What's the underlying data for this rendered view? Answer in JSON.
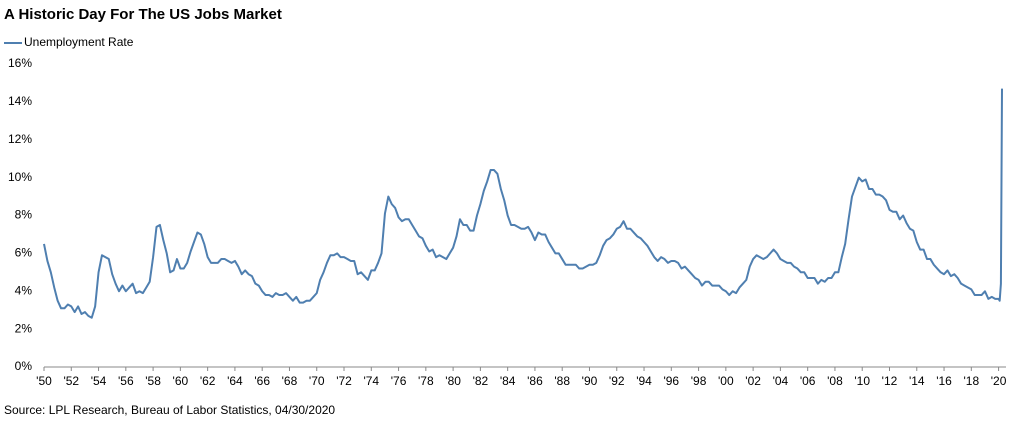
{
  "chart_data": {
    "type": "line",
    "title": "A Historic Day For The US Jobs Market",
    "source": "Source: LPL Research, Bureau of Labor Statistics, 04/30/2020",
    "x": [
      1950,
      1950.25,
      1950.5,
      1950.75,
      1951,
      1951.25,
      1951.5,
      1951.75,
      1952,
      1952.25,
      1952.5,
      1952.75,
      1953,
      1953.25,
      1953.5,
      1953.75,
      1954,
      1954.25,
      1954.5,
      1954.75,
      1955,
      1955.25,
      1955.5,
      1955.75,
      1956,
      1956.25,
      1956.5,
      1956.75,
      1957,
      1957.25,
      1957.5,
      1957.75,
      1958,
      1958.25,
      1958.5,
      1958.75,
      1959,
      1959.25,
      1959.5,
      1959.75,
      1960,
      1960.25,
      1960.5,
      1960.75,
      1961,
      1961.25,
      1961.5,
      1961.75,
      1962,
      1962.25,
      1962.5,
      1962.75,
      1963,
      1963.25,
      1963.5,
      1963.75,
      1964,
      1964.25,
      1964.5,
      1964.75,
      1965,
      1965.25,
      1965.5,
      1965.75,
      1966,
      1966.25,
      1966.5,
      1966.75,
      1967,
      1967.25,
      1967.5,
      1967.75,
      1968,
      1968.25,
      1968.5,
      1968.75,
      1969,
      1969.25,
      1969.5,
      1969.75,
      1970,
      1970.25,
      1970.5,
      1970.75,
      1971,
      1971.25,
      1971.5,
      1971.75,
      1972,
      1972.25,
      1972.5,
      1972.75,
      1973,
      1973.25,
      1973.5,
      1973.75,
      1974,
      1974.25,
      1974.5,
      1974.75,
      1975,
      1975.25,
      1975.5,
      1975.75,
      1976,
      1976.25,
      1976.5,
      1976.75,
      1977,
      1977.25,
      1977.5,
      1977.75,
      1978,
      1978.25,
      1978.5,
      1978.75,
      1979,
      1979.25,
      1979.5,
      1979.75,
      1980,
      1980.25,
      1980.5,
      1980.75,
      1981,
      1981.25,
      1981.5,
      1981.75,
      1982,
      1982.25,
      1982.5,
      1982.75,
      1983,
      1983.25,
      1983.5,
      1983.75,
      1984,
      1984.25,
      1984.5,
      1984.75,
      1985,
      1985.25,
      1985.5,
      1985.75,
      1986,
      1986.25,
      1986.5,
      1986.75,
      1987,
      1987.25,
      1987.5,
      1987.75,
      1988,
      1988.25,
      1988.5,
      1988.75,
      1989,
      1989.25,
      1989.5,
      1989.75,
      1990,
      1990.25,
      1990.5,
      1990.75,
      1991,
      1991.25,
      1991.5,
      1991.75,
      1992,
      1992.25,
      1992.5,
      1992.75,
      1993,
      1993.25,
      1993.5,
      1993.75,
      1994,
      1994.25,
      1994.5,
      1994.75,
      1995,
      1995.25,
      1995.5,
      1995.75,
      1996,
      1996.25,
      1996.5,
      1996.75,
      1997,
      1997.25,
      1997.5,
      1997.75,
      1998,
      1998.25,
      1998.5,
      1998.75,
      1999,
      1999.25,
      1999.5,
      1999.75,
      2000,
      2000.25,
      2000.5,
      2000.75,
      2001,
      2001.25,
      2001.5,
      2001.75,
      2002,
      2002.25,
      2002.5,
      2002.75,
      2003,
      2003.25,
      2003.5,
      2003.75,
      2004,
      2004.25,
      2004.5,
      2004.75,
      2005,
      2005.25,
      2005.5,
      2005.75,
      2006,
      2006.25,
      2006.5,
      2006.75,
      2007,
      2007.25,
      2007.5,
      2007.75,
      2008,
      2008.25,
      2008.5,
      2008.75,
      2009,
      2009.25,
      2009.5,
      2009.75,
      2010,
      2010.25,
      2010.5,
      2010.75,
      2011,
      2011.25,
      2011.5,
      2011.75,
      2012,
      2012.25,
      2012.5,
      2012.75,
      2013,
      2013.25,
      2013.5,
      2013.75,
      2014,
      2014.25,
      2014.5,
      2014.75,
      2015,
      2015.25,
      2015.5,
      2015.75,
      2016,
      2016.25,
      2016.5,
      2016.75,
      2017,
      2017.25,
      2017.5,
      2017.75,
      2018,
      2018.25,
      2018.5,
      2018.75,
      2019,
      2019.25,
      2019.5,
      2019.75,
      2020,
      2020.08,
      2020.17,
      2020.25
    ],
    "series": [
      {
        "name": "Unemployment Rate",
        "color": "#4f7fb0",
        "values": [
          6.5,
          5.6,
          5.0,
          4.2,
          3.5,
          3.1,
          3.1,
          3.3,
          3.2,
          2.9,
          3.2,
          2.8,
          2.9,
          2.7,
          2.6,
          3.2,
          5.0,
          5.9,
          5.8,
          5.7,
          4.9,
          4.4,
          4.0,
          4.3,
          4.0,
          4.2,
          4.4,
          3.9,
          4.0,
          3.9,
          4.2,
          4.5,
          5.8,
          7.4,
          7.5,
          6.7,
          6.0,
          5.0,
          5.1,
          5.7,
          5.2,
          5.2,
          5.5,
          6.1,
          6.6,
          7.1,
          7.0,
          6.5,
          5.8,
          5.5,
          5.5,
          5.5,
          5.7,
          5.7,
          5.6,
          5.5,
          5.6,
          5.3,
          4.9,
          5.1,
          4.9,
          4.8,
          4.4,
          4.3,
          4.0,
          3.8,
          3.8,
          3.7,
          3.9,
          3.8,
          3.8,
          3.9,
          3.7,
          3.5,
          3.7,
          3.4,
          3.4,
          3.5,
          3.5,
          3.7,
          3.9,
          4.6,
          5.0,
          5.5,
          5.9,
          5.9,
          6.0,
          5.8,
          5.8,
          5.7,
          5.6,
          5.6,
          4.9,
          5.0,
          4.8,
          4.6,
          5.1,
          5.1,
          5.5,
          6.0,
          8.1,
          9.0,
          8.6,
          8.4,
          7.9,
          7.7,
          7.8,
          7.8,
          7.5,
          7.2,
          6.9,
          6.8,
          6.4,
          6.1,
          6.2,
          5.8,
          5.9,
          5.8,
          5.7,
          6.0,
          6.3,
          6.9,
          7.8,
          7.5,
          7.5,
          7.2,
          7.2,
          8.0,
          8.6,
          9.3,
          9.8,
          10.4,
          10.4,
          10.2,
          9.4,
          8.8,
          8.0,
          7.5,
          7.5,
          7.4,
          7.3,
          7.3,
          7.4,
          7.1,
          6.7,
          7.1,
          7.0,
          7.0,
          6.6,
          6.3,
          6.0,
          6.0,
          5.7,
          5.4,
          5.4,
          5.4,
          5.4,
          5.2,
          5.2,
          5.3,
          5.4,
          5.4,
          5.5,
          5.9,
          6.4,
          6.7,
          6.8,
          7.0,
          7.3,
          7.4,
          7.7,
          7.3,
          7.3,
          7.1,
          6.9,
          6.8,
          6.6,
          6.4,
          6.1,
          5.8,
          5.6,
          5.8,
          5.7,
          5.5,
          5.6,
          5.6,
          5.5,
          5.2,
          5.3,
          5.1,
          4.9,
          4.7,
          4.6,
          4.3,
          4.5,
          4.5,
          4.3,
          4.3,
          4.3,
          4.1,
          4.0,
          3.8,
          4.0,
          3.9,
          4.2,
          4.4,
          4.6,
          5.3,
          5.7,
          5.9,
          5.8,
          5.7,
          5.8,
          6.0,
          6.2,
          6.0,
          5.7,
          5.6,
          5.5,
          5.5,
          5.3,
          5.2,
          5.0,
          5.0,
          4.7,
          4.7,
          4.7,
          4.4,
          4.6,
          4.5,
          4.7,
          4.7,
          5.0,
          5.0,
          5.8,
          6.5,
          7.8,
          9.0,
          9.5,
          10.0,
          9.8,
          9.9,
          9.4,
          9.4,
          9.1,
          9.1,
          9.0,
          8.8,
          8.3,
          8.2,
          8.2,
          7.8,
          8.0,
          7.6,
          7.3,
          7.2,
          6.6,
          6.2,
          6.2,
          5.7,
          5.7,
          5.4,
          5.2,
          5.0,
          4.9,
          5.1,
          4.8,
          4.9,
          4.7,
          4.4,
          4.3,
          4.2,
          4.1,
          3.8,
          3.8,
          3.8,
          4.0,
          3.6,
          3.7,
          3.6,
          3.6,
          3.5,
          4.4,
          14.7
        ]
      }
    ],
    "xlim": [
      1950,
      2020.25
    ],
    "xticks": [
      {
        "value": 1950,
        "label": "'50"
      },
      {
        "value": 1952,
        "label": "'52"
      },
      {
        "value": 1954,
        "label": "'54"
      },
      {
        "value": 1956,
        "label": "'56"
      },
      {
        "value": 1958,
        "label": "'58"
      },
      {
        "value": 1960,
        "label": "'60"
      },
      {
        "value": 1962,
        "label": "'62"
      },
      {
        "value": 1964,
        "label": "'64"
      },
      {
        "value": 1966,
        "label": "'66"
      },
      {
        "value": 1968,
        "label": "'68"
      },
      {
        "value": 1970,
        "label": "'70"
      },
      {
        "value": 1972,
        "label": "'72"
      },
      {
        "value": 1974,
        "label": "'74"
      },
      {
        "value": 1976,
        "label": "'76"
      },
      {
        "value": 1978,
        "label": "'78"
      },
      {
        "value": 1980,
        "label": "'80"
      },
      {
        "value": 1982,
        "label": "'82"
      },
      {
        "value": 1984,
        "label": "'84"
      },
      {
        "value": 1986,
        "label": "'86"
      },
      {
        "value": 1988,
        "label": "'88"
      },
      {
        "value": 1990,
        "label": "'90"
      },
      {
        "value": 1992,
        "label": "'92"
      },
      {
        "value": 1994,
        "label": "'94"
      },
      {
        "value": 1996,
        "label": "'96"
      },
      {
        "value": 1998,
        "label": "'98"
      },
      {
        "value": 2000,
        "label": "'00"
      },
      {
        "value": 2002,
        "label": "'02"
      },
      {
        "value": 2004,
        "label": "'04"
      },
      {
        "value": 2006,
        "label": "'06"
      },
      {
        "value": 2008,
        "label": "'08"
      },
      {
        "value": 2010,
        "label": "'10"
      },
      {
        "value": 2012,
        "label": "'12"
      },
      {
        "value": 2014,
        "label": "'14"
      },
      {
        "value": 2016,
        "label": "'16"
      },
      {
        "value": 2018,
        "label": "'18"
      },
      {
        "value": 2020,
        "label": "'20"
      }
    ],
    "ylim": [
      0,
      16
    ],
    "yticks": [
      {
        "value": 0,
        "label": "0%"
      },
      {
        "value": 2,
        "label": "2%"
      },
      {
        "value": 4,
        "label": "4%"
      },
      {
        "value": 6,
        "label": "6%"
      },
      {
        "value": 8,
        "label": "8%"
      },
      {
        "value": 10,
        "label": "10%"
      },
      {
        "value": 12,
        "label": "12%"
      },
      {
        "value": 14,
        "label": "14%"
      },
      {
        "value": 16,
        "label": "16%"
      }
    ],
    "grid": false
  }
}
